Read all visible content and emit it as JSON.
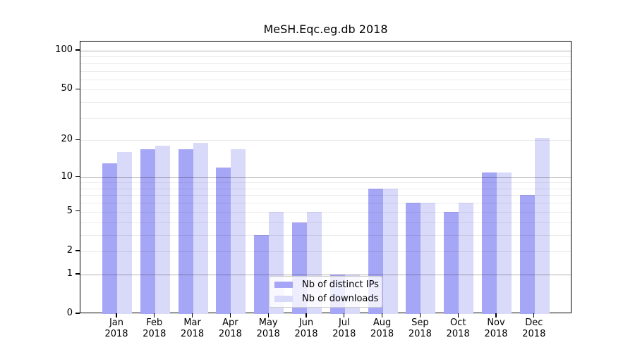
{
  "title": "MeSH.Eqc.eg.db 2018",
  "chart_data": {
    "type": "bar",
    "title": "MeSH.Eqc.eg.db 2018",
    "categories": [
      "Jan 2018",
      "Feb 2018",
      "Mar 2018",
      "Apr 2018",
      "May 2018",
      "Jun 2018",
      "Jul 2018",
      "Aug 2018",
      "Sep 2018",
      "Oct 2018",
      "Nov 2018",
      "Dec 2018"
    ],
    "x_tick_months": [
      "Jan",
      "Feb",
      "Mar",
      "Apr",
      "May",
      "Jun",
      "Jul",
      "Aug",
      "Sep",
      "Oct",
      "Nov",
      "Dec"
    ],
    "x_tick_year": "2018",
    "series": [
      {
        "name": "Nb of distinct IPs",
        "color": "#a6a6f6",
        "values": [
          13,
          17,
          17,
          12,
          3,
          4,
          1,
          8,
          6,
          5,
          11,
          7
        ]
      },
      {
        "name": "Nb of downloads",
        "color": "#d9d9fa",
        "values": [
          16,
          18,
          19,
          17,
          5,
          5,
          1,
          8,
          6,
          6,
          11,
          21
        ]
      }
    ],
    "yscale": "log10(1+x)",
    "ylim": [
      0,
      117
    ],
    "yticks": [
      100,
      50,
      20,
      10,
      5,
      2,
      1,
      0
    ],
    "major_gridlines": [
      100,
      10,
      1
    ],
    "minor_gridlines": [
      90,
      80,
      70,
      60,
      50,
      40,
      30,
      20,
      9,
      8,
      7,
      6,
      5,
      4,
      3,
      2
    ],
    "grid": true,
    "xlabel": "",
    "ylabel": "",
    "legend_position": "bottom-center"
  }
}
